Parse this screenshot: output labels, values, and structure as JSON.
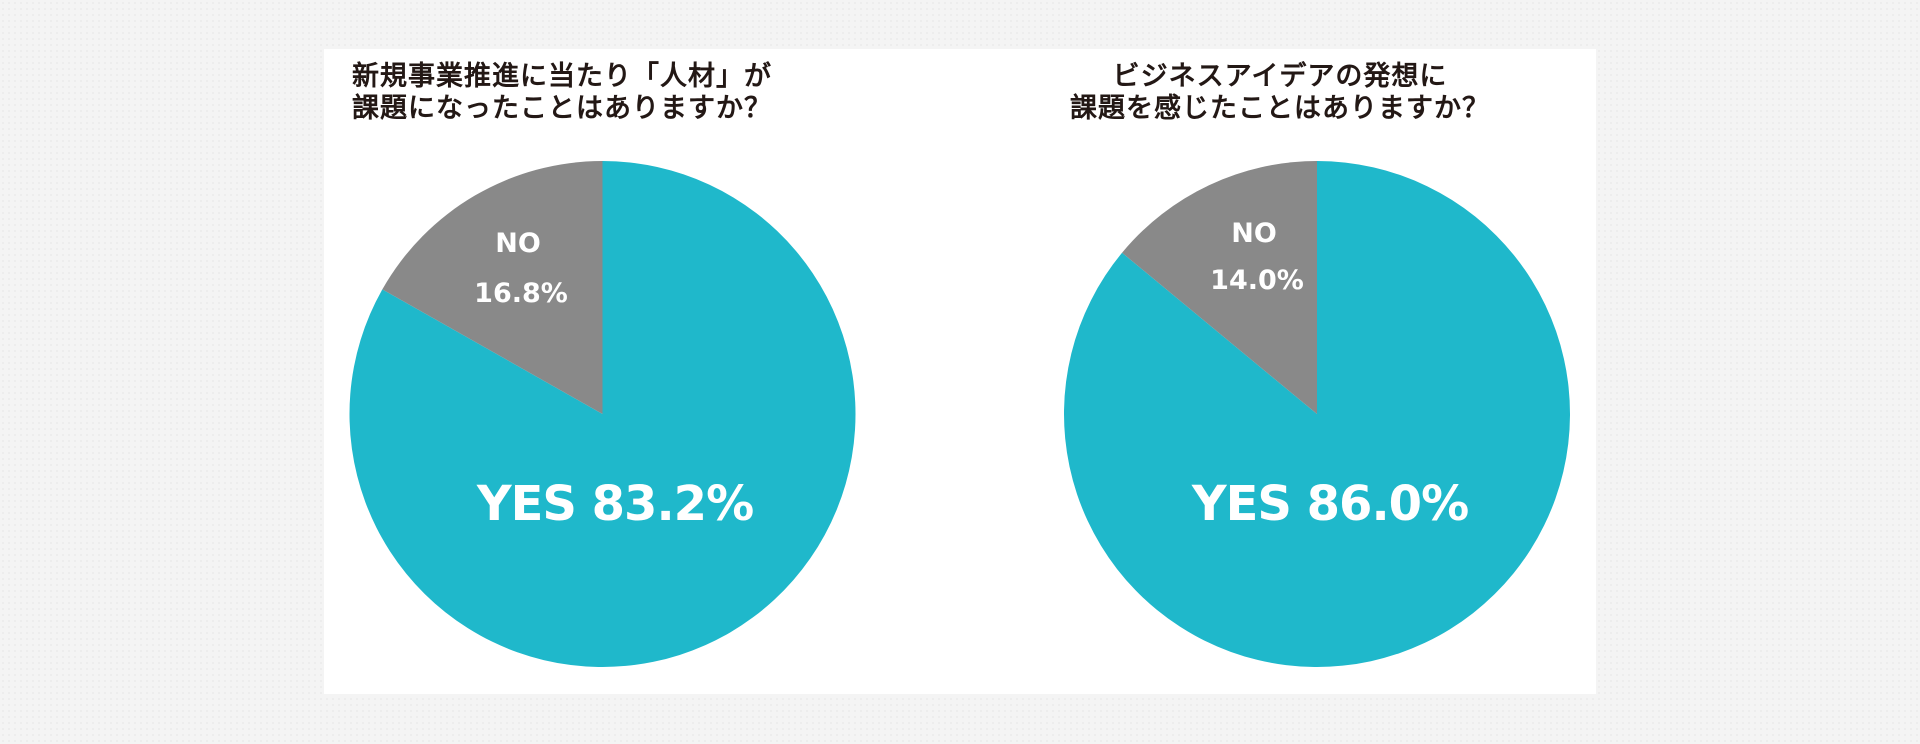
{
  "colors": {
    "yes": "#1fb8cb",
    "no": "#898989",
    "title_text": "#231815",
    "panel_bg": "#ffffff",
    "page_bg": "#f4f4f4"
  },
  "charts": [
    {
      "title_lines": [
        "新規事業推進に当たり「人材」が",
        "課題になったことはありますか？"
      ],
      "no_label": "NO",
      "no_value": "16.8%",
      "yes_text": "YES 83.2%"
    },
    {
      "title_lines": [
        "ビジネスアイデアの発想に",
        "課題を感じたことはありますか？"
      ],
      "no_label": "NO",
      "no_value": "14.0%",
      "yes_text": "YES 86.0%"
    }
  ],
  "chart_data": [
    {
      "type": "pie",
      "title": "新規事業推進に当たり「人材」が課題になったことはありますか？",
      "categories": [
        "YES",
        "NO"
      ],
      "values": [
        83.2,
        16.8
      ],
      "unit": "%",
      "colors": [
        "#1fb8cb",
        "#898989"
      ],
      "start_angle": "12 o'clock, NO slice counter-clockwise",
      "legend": "none (inline labels)"
    },
    {
      "type": "pie",
      "title": "ビジネスアイデアの発想に課題を感じたことはありますか？",
      "categories": [
        "YES",
        "NO"
      ],
      "values": [
        86.0,
        14.0
      ],
      "unit": "%",
      "colors": [
        "#1fb8cb",
        "#898989"
      ],
      "start_angle": "12 o'clock, NO slice counter-clockwise",
      "legend": "none (inline labels)"
    }
  ]
}
